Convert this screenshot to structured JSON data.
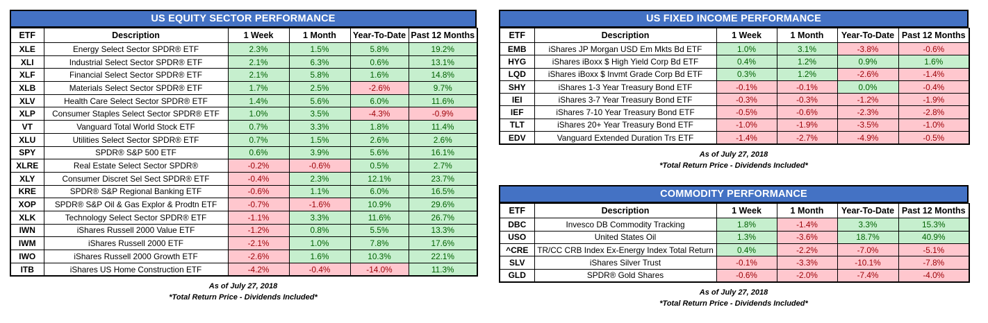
{
  "colors": {
    "header_blue": "#4472C4",
    "title_text": "#FFFFFF",
    "positive_bg": "#C6EFCE",
    "positive_text": "#006100",
    "negative_bg": "#FFC7CE",
    "negative_text": "#9C0006",
    "border": "#000000"
  },
  "columns": [
    "ETF",
    "Description",
    "1 Week",
    "1 Month",
    "Year-To-Date",
    "Past 12 Months"
  ],
  "tables": [
    {
      "title": "US EQUITY SECTOR PERFORMANCE",
      "as_of": "As of July 27, 2018",
      "disclaimer": "*Total Return Price - Dividends Included*",
      "rows": [
        {
          "etf": "XLE",
          "description": "Energy Select Sector SPDR® ETF",
          "values": [
            "2.3%",
            "1.5%",
            "5.8%",
            "19.2%"
          ]
        },
        {
          "etf": "XLI",
          "description": "Industrial Select Sector SPDR® ETF",
          "values": [
            "2.1%",
            "6.3%",
            "0.6%",
            "13.1%"
          ]
        },
        {
          "etf": "XLF",
          "description": "Financial Select Sector SPDR® ETF",
          "values": [
            "2.1%",
            "5.8%",
            "1.6%",
            "14.8%"
          ]
        },
        {
          "etf": "XLB",
          "description": "Materials Select Sector SPDR® ETF",
          "values": [
            "1.7%",
            "2.5%",
            "-2.6%",
            "9.7%"
          ]
        },
        {
          "etf": "XLV",
          "description": "Health Care Select Sector SPDR® ETF",
          "values": [
            "1.4%",
            "5.6%",
            "6.0%",
            "11.6%"
          ]
        },
        {
          "etf": "XLP",
          "description": "Consumer Staples Select Sector SPDR® ETF",
          "values": [
            "1.0%",
            "3.5%",
            "-4.3%",
            "-0.9%"
          ]
        },
        {
          "etf": "VT",
          "description": "Vanguard Total World Stock ETF",
          "values": [
            "0.7%",
            "3.3%",
            "1.8%",
            "11.4%"
          ]
        },
        {
          "etf": "XLU",
          "description": "Utilities Select Sector SPDR® ETF",
          "values": [
            "0.7%",
            "1.5%",
            "2.6%",
            "2.6%"
          ]
        },
        {
          "etf": "SPY",
          "description": "SPDR® S&P 500 ETF",
          "values": [
            "0.6%",
            "3.9%",
            "5.6%",
            "16.1%"
          ]
        },
        {
          "etf": "XLRE",
          "description": "Real Estate Select Sector SPDR®",
          "values": [
            "-0.2%",
            "-0.6%",
            "0.5%",
            "2.7%"
          ]
        },
        {
          "etf": "XLY",
          "description": "Consumer Discret Sel Sect SPDR® ETF",
          "values": [
            "-0.4%",
            "2.3%",
            "12.1%",
            "23.7%"
          ]
        },
        {
          "etf": "KRE",
          "description": "SPDR® S&P Regional Banking ETF",
          "values": [
            "-0.6%",
            "1.1%",
            "6.0%",
            "16.5%"
          ]
        },
        {
          "etf": "XOP",
          "description": "SPDR® S&P Oil & Gas Explor & Prodtn ETF",
          "values": [
            "-0.7%",
            "-1.6%",
            "10.9%",
            "29.6%"
          ]
        },
        {
          "etf": "XLK",
          "description": "Technology Select Sector SPDR® ETF",
          "values": [
            "-1.1%",
            "3.3%",
            "11.6%",
            "26.7%"
          ]
        },
        {
          "etf": "IWN",
          "description": "iShares Russell 2000 Value ETF",
          "values": [
            "-1.2%",
            "0.8%",
            "5.5%",
            "13.3%"
          ]
        },
        {
          "etf": "IWM",
          "description": "iShares Russell 2000 ETF",
          "values": [
            "-2.1%",
            "1.0%",
            "7.8%",
            "17.6%"
          ]
        },
        {
          "etf": "IWO",
          "description": "iShares Russell 2000 Growth ETF",
          "values": [
            "-2.6%",
            "1.6%",
            "10.3%",
            "22.1%"
          ]
        },
        {
          "etf": "ITB",
          "description": "iShares US Home Construction ETF",
          "values": [
            "-4.2%",
            "-0.4%",
            "-14.0%",
            "11.3%"
          ]
        }
      ]
    },
    {
      "title": "US FIXED INCOME PERFORMANCE",
      "as_of": "As of July 27, 2018",
      "disclaimer": "*Total Return Price - Dividends Included*",
      "rows": [
        {
          "etf": "EMB",
          "description": "iShares JP Morgan USD Em Mkts Bd ETF",
          "values": [
            "1.0%",
            "3.1%",
            "-3.8%",
            "-0.6%"
          ]
        },
        {
          "etf": "HYG",
          "description": "iShares iBoxx $ High Yield Corp Bd ETF",
          "values": [
            "0.4%",
            "1.2%",
            "0.9%",
            "1.6%"
          ]
        },
        {
          "etf": "LQD",
          "description": "iShares iBoxx $ Invmt Grade Corp Bd ETF",
          "values": [
            "0.3%",
            "1.2%",
            "-2.6%",
            "-1.4%"
          ]
        },
        {
          "etf": "SHY",
          "description": "iShares 1-3 Year Treasury Bond ETF",
          "values": [
            "-0.1%",
            "-0.1%",
            "0.0%",
            "-0.4%"
          ]
        },
        {
          "etf": "IEI",
          "description": "iShares 3-7 Year Treasury Bond ETF",
          "values": [
            "-0.3%",
            "-0.3%",
            "-1.2%",
            "-1.9%"
          ]
        },
        {
          "etf": "IEF",
          "description": "iShares 7-10 Year Treasury Bond ETF",
          "values": [
            "-0.5%",
            "-0.6%",
            "-2.3%",
            "-2.8%"
          ]
        },
        {
          "etf": "TLT",
          "description": "iShares 20+ Year Treasury Bond ETF",
          "values": [
            "-1.0%",
            "-1.9%",
            "-3.5%",
            "-1.0%"
          ]
        },
        {
          "etf": "EDV",
          "description": "Vanguard Extended Duration Trs ETF",
          "values": [
            "-1.4%",
            "-2.7%",
            "-4.9%",
            "-0.5%"
          ]
        }
      ]
    },
    {
      "title": "COMMODITY PERFORMANCE",
      "as_of": "As of July 27, 2018",
      "disclaimer": "*Total Return Price - Dividends Included*",
      "rows": [
        {
          "etf": "DBC",
          "description": "Invesco DB Commodity Tracking",
          "values": [
            "1.8%",
            "-1.4%",
            "3.3%",
            "15.3%"
          ]
        },
        {
          "etf": "USO",
          "description": "United States Oil",
          "values": [
            "1.3%",
            "-3.6%",
            "18.7%",
            "40.9%"
          ]
        },
        {
          "etf": "^CRE",
          "description": "TR/CC CRB Index Ex-Energy Index Total Return",
          "values": [
            "0.4%",
            "-2.2%",
            "-7.0%",
            "-5.1%"
          ]
        },
        {
          "etf": "SLV",
          "description": "iShares Silver Trust",
          "values": [
            "-0.1%",
            "-3.3%",
            "-10.1%",
            "-7.8%"
          ]
        },
        {
          "etf": "GLD",
          "description": "SPDR® Gold Shares",
          "values": [
            "-0.6%",
            "-2.0%",
            "-7.4%",
            "-4.0%"
          ]
        }
      ]
    }
  ]
}
